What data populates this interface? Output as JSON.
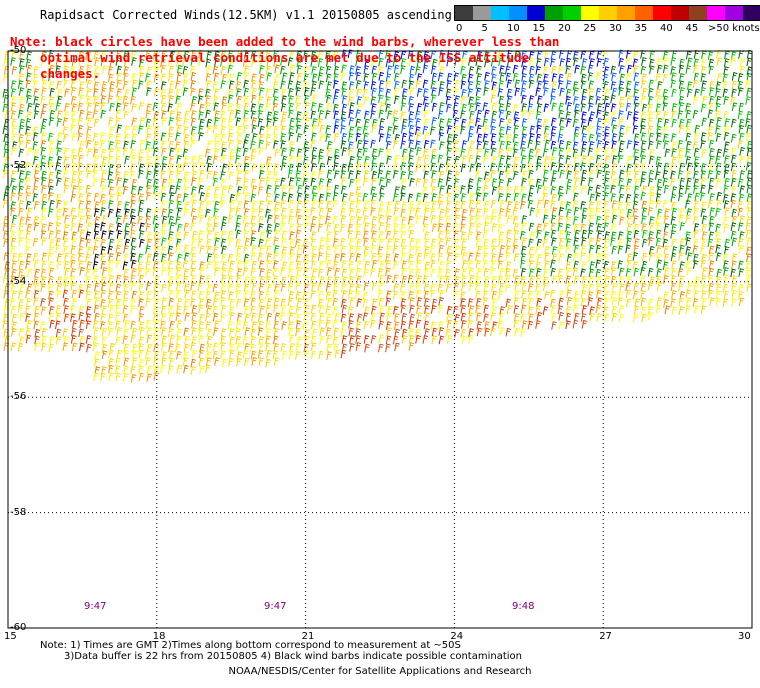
{
  "title": "Rapidsact Corrected Winds(12.5KM) v1.1 20150805 ascending",
  "note": {
    "line1": "Note: black circles have been added to the wind barbs, wherever less than",
    "line2": "optimal wind retrieval conditions are met due to the ISS attitude changes."
  },
  "legend": {
    "unit_label": ">50 knots",
    "ticks": [
      "0",
      "5",
      "10",
      "15",
      "20",
      "25",
      "30",
      "35",
      "40",
      "45"
    ],
    "colors": [
      "#3c3c3c",
      "#9a9a9a",
      "#00c0ff",
      "#0090ff",
      "#0000d0",
      "#00a000",
      "#00d000",
      "#ffff00",
      "#ffd000",
      "#ffa000",
      "#ff6000",
      "#ff0000",
      "#c00000",
      "#904020",
      "#ff00ff",
      "#a000e0",
      "#300060"
    ]
  },
  "axes": {
    "lon_ticks": [
      "15",
      "18",
      "21",
      "24",
      "27",
      "30"
    ],
    "lat_ticks": [
      "-50",
      "-52",
      "-54",
      "-56",
      "-58",
      "-60"
    ]
  },
  "times": [
    "9:47",
    "9:47",
    "9:48"
  ],
  "footnote": {
    "line1": "Note: 1) Times are GMT 2)Times along bottom correspond to measurement at ~50S",
    "line2": "3)Data buffer is 22 hrs from 20150805 4) Black wind barbs indicate possible contamination"
  },
  "credit": "NOAA/NESDIS/Center for Satellite Applications and Research"
}
